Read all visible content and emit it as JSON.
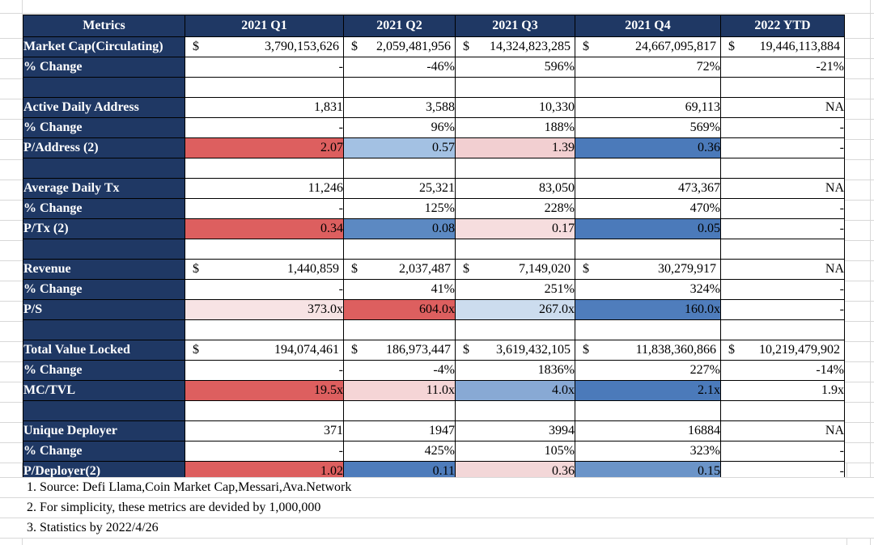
{
  "colors": {
    "header_bg": "#1F3864",
    "strong_red": "#DD5F5F",
    "strong_blue": "#4B7ABA",
    "grid_faint": "#D8D8D8"
  },
  "table": {
    "columns": [
      "Metrics",
      "2021 Q1",
      "2021 Q2",
      "2021 Q3",
      "2021 Q4",
      "2022 YTD"
    ],
    "rows": [
      {
        "label": "Market Cap(Circulating)",
        "cells": [
          {
            "text": "3,790,153,626",
            "money": true
          },
          {
            "text": "2,059,481,956",
            "money": true
          },
          {
            "text": "14,324,823,285",
            "money": true
          },
          {
            "text": "24,667,095,817",
            "money": true
          },
          {
            "text": "19,446,113,884",
            "money": true
          }
        ]
      },
      {
        "label": "% Change",
        "cells": [
          {
            "text": "-"
          },
          {
            "text": "-46%"
          },
          {
            "text": "596%"
          },
          {
            "text": "72%"
          },
          {
            "text": "-21%"
          }
        ]
      },
      {
        "label": "",
        "spacer": true
      },
      {
        "label": "Active Daily Address",
        "cells": [
          {
            "text": "1,831"
          },
          {
            "text": "3,588"
          },
          {
            "text": "10,330"
          },
          {
            "text": "69,113"
          },
          {
            "text": "NA"
          }
        ]
      },
      {
        "label": "% Change",
        "cells": [
          {
            "text": "-"
          },
          {
            "text": "96%"
          },
          {
            "text": "188%"
          },
          {
            "text": "569%"
          },
          {
            "text": "-"
          }
        ]
      },
      {
        "label": "P/Address (2)",
        "cells": [
          {
            "text": "2.07",
            "bg": "#DD5F5F"
          },
          {
            "text": "0.57",
            "bg": "#A3C1E3"
          },
          {
            "text": "1.39",
            "bg": "#F2CFD1"
          },
          {
            "text": "0.36",
            "bg": "#4B7ABA"
          },
          {
            "text": "-"
          }
        ]
      },
      {
        "label": "",
        "spacer": true
      },
      {
        "label": "Average Daily Tx",
        "cells": [
          {
            "text": "11,246"
          },
          {
            "text": "25,321"
          },
          {
            "text": "83,050"
          },
          {
            "text": "473,367"
          },
          {
            "text": "NA"
          }
        ]
      },
      {
        "label": "% Change",
        "cells": [
          {
            "text": "-"
          },
          {
            "text": "125%"
          },
          {
            "text": "228%"
          },
          {
            "text": "470%"
          },
          {
            "text": "-"
          }
        ]
      },
      {
        "label": "P/Tx (2)",
        "cells": [
          {
            "text": "0.34",
            "bg": "#DD5F5F"
          },
          {
            "text": "0.08",
            "bg": "#5C89C2"
          },
          {
            "text": "0.17",
            "bg": "#F6DDDE"
          },
          {
            "text": "0.05",
            "bg": "#4B7ABA"
          },
          {
            "text": "-"
          }
        ]
      },
      {
        "label": "",
        "spacer": true
      },
      {
        "label": "Revenue",
        "cells": [
          {
            "text": "1,440,859",
            "money": true
          },
          {
            "text": "2,037,487",
            "money": true
          },
          {
            "text": "7,149,020",
            "money": true
          },
          {
            "text": "30,279,917",
            "money": true
          },
          {
            "text": "NA"
          }
        ]
      },
      {
        "label": "% Change",
        "cells": [
          {
            "text": "-"
          },
          {
            "text": "41%"
          },
          {
            "text": "251%"
          },
          {
            "text": "324%"
          },
          {
            "text": "-"
          }
        ]
      },
      {
        "label": "P/S",
        "cells": [
          {
            "text": "373.0x",
            "bg": "#F7E3E4"
          },
          {
            "text": "604.0x",
            "bg": "#DD5F5F"
          },
          {
            "text": "267.0x",
            "bg": "#CCDCEE"
          },
          {
            "text": "160.0x",
            "bg": "#4F7DBC"
          },
          {
            "text": "-"
          }
        ]
      },
      {
        "label": "",
        "spacer": true
      },
      {
        "label": "Total Value Locked",
        "cells": [
          {
            "text": "194,074,461",
            "money": true
          },
          {
            "text": "186,973,447",
            "money": true
          },
          {
            "text": "3,619,432,105",
            "money": true
          },
          {
            "text": "11,838,360,866",
            "money": true
          },
          {
            "text": "10,219,479,902",
            "money": true
          }
        ]
      },
      {
        "label": "% Change",
        "cells": [
          {
            "text": "-"
          },
          {
            "text": "-4%"
          },
          {
            "text": "1836%"
          },
          {
            "text": "227%"
          },
          {
            "text": "-14%"
          }
        ]
      },
      {
        "label": "MC/TVL",
        "cells": [
          {
            "text": "19.5x",
            "bg": "#DD5F5F"
          },
          {
            "text": "11.0x",
            "bg": "#F5D5D6"
          },
          {
            "text": "4.0x",
            "bg": "#88A9D4"
          },
          {
            "text": "2.1x",
            "bg": "#4B7ABA"
          },
          {
            "text": "1.9x"
          }
        ]
      },
      {
        "label": "",
        "spacer": true
      },
      {
        "label": "Unique Deployer",
        "cells": [
          {
            "text": "371"
          },
          {
            "text": "1947"
          },
          {
            "text": "3994"
          },
          {
            "text": "16884"
          },
          {
            "text": "NA"
          }
        ]
      },
      {
        "label": "% Change",
        "cells": [
          {
            "text": "-"
          },
          {
            "text": "425%"
          },
          {
            "text": "105%"
          },
          {
            "text": "323%"
          },
          {
            "text": "-"
          }
        ]
      },
      {
        "label": "P/Deployer(2)",
        "cells": [
          {
            "text": "1.02",
            "bg": "#DD5F5F"
          },
          {
            "text": "0.11",
            "bg": "#4E7CBB"
          },
          {
            "text": "0.36",
            "bg": "#F3D7D8"
          },
          {
            "text": "0.15",
            "bg": "#6B94C8"
          },
          {
            "text": "-"
          }
        ]
      }
    ]
  },
  "notes": [
    "1. Source: Defi Llama,Coin Market Cap,Messari,Ava.Network",
    "2. For simplicity, these metrics are devided by 1,000,000",
    "3. Statistics by 2022/4/26"
  ]
}
